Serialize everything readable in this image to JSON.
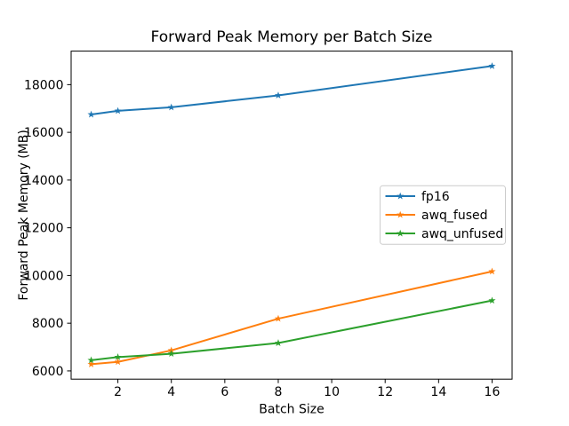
{
  "chart_data": {
    "type": "line",
    "title": "Forward Peak Memory per Batch Size",
    "xlabel": "Batch Size",
    "ylabel": "Forward Peak Memory (MB)",
    "x": [
      1,
      2,
      4,
      8,
      16
    ],
    "series": [
      {
        "name": "fp16",
        "color": "#1f77b4",
        "marker": "star",
        "values": [
          16750,
          16900,
          17050,
          17550,
          18780
        ]
      },
      {
        "name": "awq_fused",
        "color": "#ff7f0e",
        "marker": "star",
        "values": [
          6280,
          6380,
          6860,
          8190,
          10170
        ]
      },
      {
        "name": "awq_unfused",
        "color": "#2ca02c",
        "marker": "star",
        "values": [
          6450,
          6580,
          6720,
          7170,
          8950
        ]
      }
    ],
    "xticks": [
      2,
      4,
      6,
      8,
      10,
      12,
      14,
      16
    ],
    "yticks": [
      6000,
      8000,
      10000,
      12000,
      14000,
      16000,
      18000
    ],
    "xlim": [
      0.25,
      16.75
    ],
    "ylim": [
      5655,
      19405
    ],
    "grid": false,
    "legend": {
      "position": "center-right",
      "entries": [
        "fp16",
        "awq_fused",
        "awq_unfused"
      ]
    },
    "colors": {
      "text": "#000000",
      "spine": "#000000",
      "legend_border": "#cccccc",
      "background": "#ffffff"
    }
  }
}
